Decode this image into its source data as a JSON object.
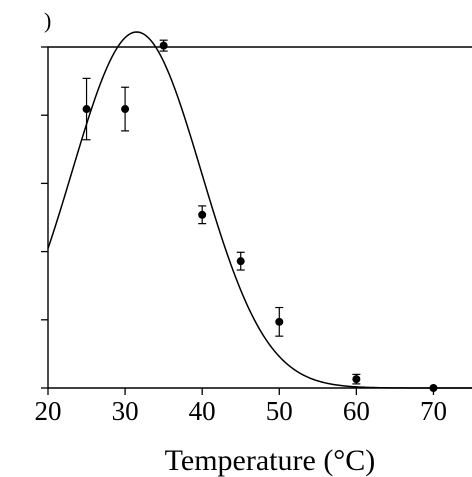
{
  "panel_label": ")",
  "chart_data": {
    "type": "scatter",
    "title": "",
    "xlabel": "Temperature (°C)",
    "ylabel": "",
    "xlim": [
      20,
      75
    ],
    "ylim": [
      0,
      5
    ],
    "x_ticks": [
      20,
      30,
      40,
      50,
      60,
      70
    ],
    "x_tick_labels": [
      "20",
      "30",
      "40",
      "50",
      "60",
      "70"
    ],
    "y_ticks": [
      0,
      1,
      2,
      3,
      4,
      5
    ],
    "y_tick_labels_visible": false,
    "grid": false,
    "legend": "none",
    "series": [
      {
        "type": "scatter",
        "x": [
          25,
          30,
          35,
          40,
          45,
          50,
          60,
          70
        ],
        "y": [
          4.09,
          4.09,
          5.02,
          2.54,
          1.86,
          0.97,
          0.13,
          0.0
        ],
        "err_low": [
          0.45,
          0.32,
          0.08,
          0.13,
          0.13,
          0.21,
          0.07,
          0.0
        ],
        "err_high": [
          0.45,
          0.32,
          0.08,
          0.13,
          0.13,
          0.21,
          0.07,
          0.0
        ],
        "color": "#000000"
      },
      {
        "type": "line",
        "fit": "gaussian",
        "fit_params": {
          "amplitude": 5.22,
          "center": 31.5,
          "sigma": 8.4
        },
        "color": "#000000"
      }
    ]
  }
}
